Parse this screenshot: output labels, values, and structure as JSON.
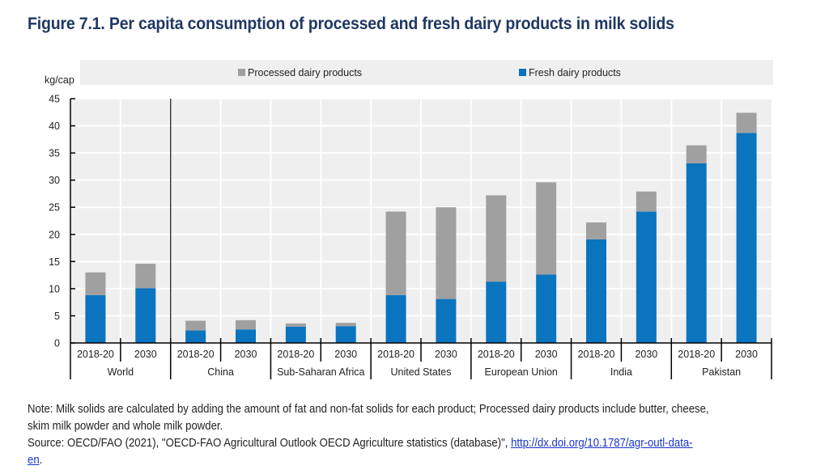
{
  "title": "Figure 7.1. Per capita consumption of processed and fresh dairy products in milk solids",
  "notes": {
    "note_line1": "Note: Milk solids are calculated by adding the amount of fat and non-fat solids for each product; Processed dairy products include butter, cheese,",
    "note_line2": "skim milk powder and whole milk powder.",
    "source_prefix": "Source: OECD/FAO (2021), \"OECD-FAO Agricultural Outlook OECD Agriculture statistics (database)\", ",
    "source_link_part1": "http://dx.doi.org/10.1787/agr-outl-data-",
    "source_link_part2": "en",
    "source_suffix": "."
  },
  "colors": {
    "fresh": "#0a74bf",
    "processed": "#a0a0a0",
    "plot_bg": "#efefef",
    "title": "#1f3864"
  },
  "chart_data": {
    "type": "bar",
    "stacked": true,
    "title": "Figure 7.1. Per capita consumption of processed and fresh dairy products in milk solids",
    "ylabel": "kg/cap",
    "xlabel": "",
    "ylim": [
      0,
      45
    ],
    "yticks": [
      0,
      5,
      10,
      15,
      20,
      25,
      30,
      35,
      40,
      45
    ],
    "grid": true,
    "legend_position": "top",
    "legend": [
      "Processed dairy products",
      "Fresh dairy products"
    ],
    "groups": [
      "World",
      "China",
      "Sub-Saharan Africa",
      "United States",
      "European Union",
      "India",
      "Pakistan"
    ],
    "periods": [
      "2018-20",
      "2030"
    ],
    "categories": [
      "World 2018-20",
      "World 2030",
      "China 2018-20",
      "China 2030",
      "Sub-Saharan Africa 2018-20",
      "Sub-Saharan Africa 2030",
      "United States 2018-20",
      "United States 2030",
      "European Union 2018-20",
      "European Union 2030",
      "India 2018-20",
      "India 2030",
      "Pakistan 2018-20",
      "Pakistan 2030"
    ],
    "series": [
      {
        "name": "Fresh dairy products",
        "values": [
          8.8,
          10.1,
          2.3,
          2.5,
          3.0,
          3.1,
          8.8,
          8.1,
          11.3,
          12.6,
          19.1,
          24.2,
          33.1,
          38.7
        ]
      },
      {
        "name": "Processed dairy products",
        "values": [
          4.2,
          4.5,
          1.8,
          1.7,
          0.6,
          0.6,
          15.4,
          16.9,
          15.9,
          17.0,
          3.1,
          3.7,
          3.3,
          3.7
        ]
      }
    ],
    "totals": [
      13.0,
      14.6,
      4.1,
      4.2,
      3.6,
      3.7,
      24.2,
      25.0,
      27.2,
      29.6,
      22.2,
      27.9,
      36.4,
      42.4
    ]
  }
}
